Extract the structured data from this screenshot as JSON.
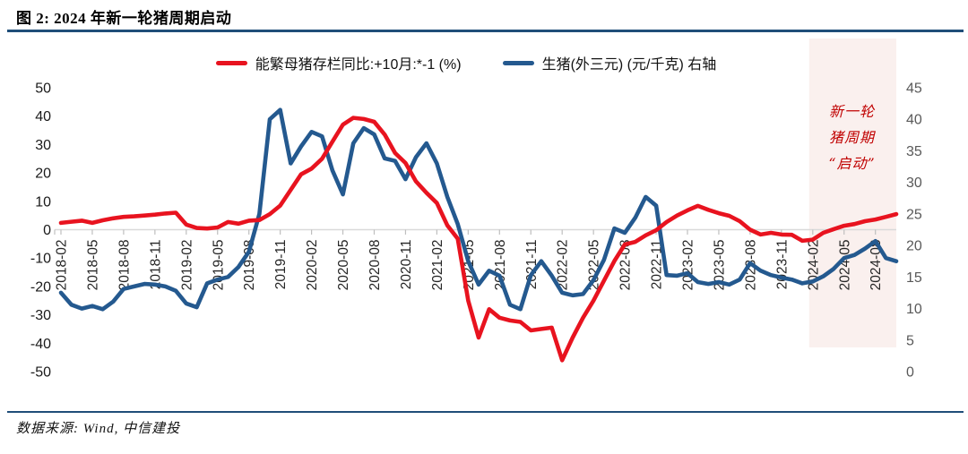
{
  "figure": {
    "title": "图 2: 2024 年新一轮猪周期启动",
    "source": "数据来源: Wind, 中信建投"
  },
  "legend": [
    {
      "label": "能繁母猪存栏同比:+10月:*-1 (%)",
      "color": "#e8131f"
    },
    {
      "label": "生猪(外三元) (元/千克) 右轴",
      "color": "#24598f"
    }
  ],
  "annotation": {
    "lines": [
      "新一轮",
      "猪周期",
      "“启动”"
    ],
    "color": "#c00000",
    "region_fill": "#faf0ee"
  },
  "colors": {
    "rule": "#1f4e79",
    "gridline": "#d9d9d9",
    "tick": "#bfbfbf",
    "left_axis_text": "#1a1a1a",
    "right_axis_text": "#595959",
    "x_axis_text": "#262626"
  },
  "chart_data": {
    "type": "line",
    "x_start": "2018-02",
    "x_step_months": 1,
    "x_tick_labels": [
      "2018-02",
      "2018-05",
      "2018-08",
      "2018-11",
      "2019-02",
      "2019-05",
      "2019-08",
      "2019-11",
      "2020-02",
      "2020-05",
      "2020-08",
      "2020-11",
      "2021-02",
      "2021-05",
      "2021-08",
      "2021-11",
      "2022-02",
      "2022-05",
      "2022-08",
      "2022-11",
      "2023-02",
      "2023-05",
      "2023-08",
      "2023-11",
      "2024-02",
      "2024-05",
      "2024-08"
    ],
    "left_axis": {
      "ticks": [
        50,
        40,
        30,
        20,
        10,
        0,
        -10,
        -20,
        -30,
        -40,
        -50
      ],
      "min": -50,
      "max": 50
    },
    "right_axis": {
      "ticks": [
        45,
        40,
        35,
        30,
        25,
        20,
        15,
        10,
        5,
        0
      ],
      "min": 0,
      "max": 45
    },
    "grid": "zero-line-only",
    "legend_position": "top-center",
    "highlight": {
      "start_label": "2024-02",
      "label": "新一轮猪周期“启动”"
    },
    "series": [
      {
        "name": "能繁母猪存栏同比:+10月:*-1 (%)",
        "axis": "left",
        "color": "#e8131f",
        "values": [
          2.4,
          2.8,
          3.2,
          2.4,
          3.3,
          4.0,
          4.5,
          4.7,
          5.0,
          5.3,
          5.7,
          6.0,
          1.8,
          0.6,
          0.4,
          0.8,
          2.7,
          2.1,
          3.2,
          3.4,
          5.5,
          8.5,
          14.0,
          19.5,
          21.5,
          25.0,
          31.0,
          37.0,
          39.4,
          39.0,
          38.0,
          33.5,
          27.0,
          23.5,
          17.0,
          13.0,
          9.4,
          1.5,
          -3.2,
          -25.0,
          -38.0,
          -28.0,
          -31.0,
          -32.0,
          -32.5,
          -35.5,
          -35.0,
          -34.5,
          -46.0,
          -38.0,
          -31.0,
          -25.0,
          -18.0,
          -11.0,
          -5.2,
          -4.3,
          -2.0,
          -0.2,
          2.7,
          5.0,
          6.8,
          8.4,
          7.0,
          5.8,
          4.9,
          3.0,
          0.0,
          -1.7,
          -1.1,
          -1.7,
          -1.8,
          -3.9,
          -3.5,
          -1.1,
          0.2,
          1.4,
          2.0,
          3.0,
          3.6,
          4.5,
          5.5
        ]
      },
      {
        "name": "生猪(外三元) (元/千克) 右轴",
        "axis": "right",
        "color": "#24598f",
        "values": [
          12.5,
          10.6,
          10.0,
          10.4,
          9.9,
          11.1,
          13.1,
          13.5,
          13.9,
          13.8,
          13.5,
          12.8,
          10.8,
          10.2,
          14.0,
          14.6,
          15.0,
          16.6,
          19.0,
          25.0,
          40.0,
          41.5,
          33.0,
          35.7,
          38.0,
          37.3,
          31.9,
          28.1,
          36.2,
          38.6,
          37.6,
          33.8,
          33.4,
          30.5,
          34.0,
          36.2,
          33.0,
          27.7,
          23.4,
          17.5,
          13.8,
          16.0,
          15.2,
          10.6,
          9.9,
          15.3,
          17.5,
          15.2,
          12.5,
          12.1,
          12.3,
          14.5,
          17.7,
          22.7,
          22.0,
          24.4,
          27.7,
          26.3,
          15.3,
          15.2,
          15.6,
          14.2,
          13.9,
          14.2,
          13.8,
          14.6,
          17.2,
          16.0,
          15.3,
          14.9,
          14.6,
          14.0,
          14.3,
          15.1,
          16.3,
          18.0,
          18.5,
          19.5,
          20.7,
          18.0,
          17.5
        ]
      }
    ]
  }
}
